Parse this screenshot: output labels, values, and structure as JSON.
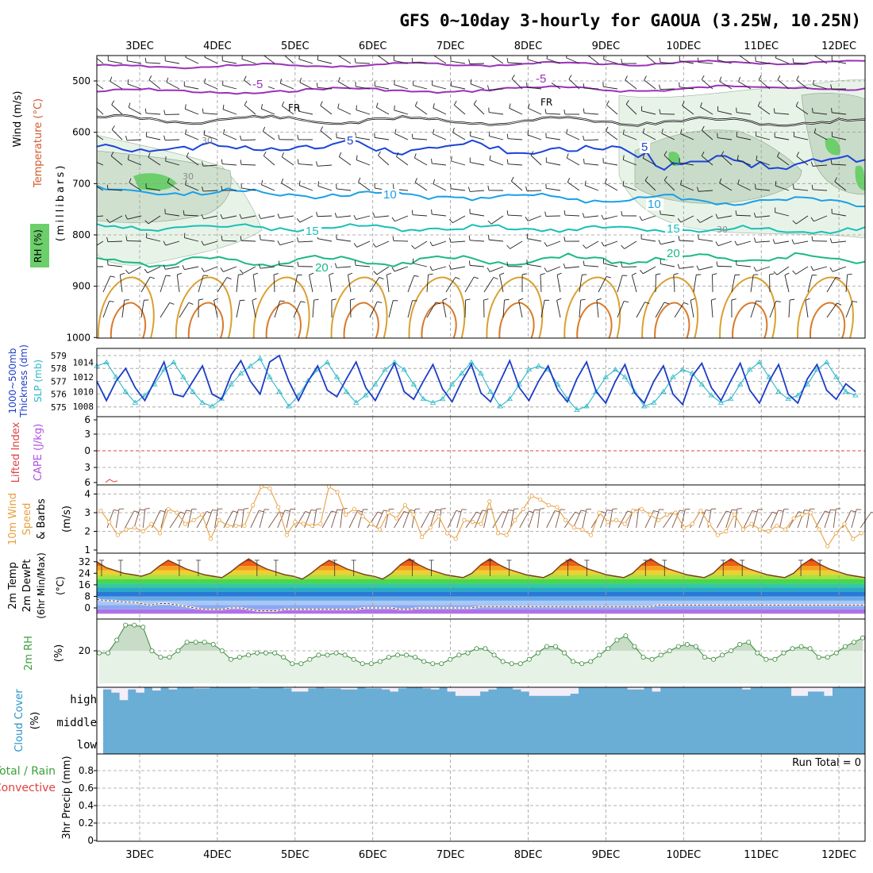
{
  "title": "GFS 0~10day 3-hourly for GAOUA (3.25W, 10.25N)",
  "days": [
    "3DEC",
    "4DEC",
    "5DEC",
    "6DEC",
    "7DEC",
    "8DEC",
    "9DEC",
    "10DEC",
    "11DEC",
    "12DEC"
  ],
  "colors": {
    "grid": "#9a9a9a",
    "rh_fill": "#e6f2e6",
    "rh_mid": "#c5d9c5",
    "rh_dark": "#a9b9a9",
    "rh_hi": "#6dcf6d",
    "purple": "#9a32b8",
    "black": "#000000",
    "blue5": "#1c44d8",
    "blue10": "#1aa0e8",
    "teal15": "#19c0b8",
    "green20": "#1cb888",
    "orange25": "#d9a030",
    "orange30": "#d97a2a",
    "magenta35": "#cc2288",
    "slp": "#2ab8c8",
    "thickness": "#1c3cc8",
    "lifted": "#e04040",
    "cape": "#b050e0",
    "wind10": "#e8a040",
    "cloud": "#6aaed6",
    "cloud_clear": "#f3eef8",
    "rh2m": "#3aa03a"
  },
  "panels": {
    "upper": {
      "ylabel_wind": "Wind (m/s)",
      "ylabel_temp": "Temperature (°C)",
      "ylabel_rh": "RH (%)",
      "ylabel_mb": "(millibars)",
      "ticks": [
        "500",
        "600",
        "700",
        "800",
        "900",
        "1000"
      ],
      "labels": [
        "-5",
        "FR",
        "5",
        "10",
        "15",
        "20",
        "30"
      ]
    },
    "slp": {
      "ylabel_thk": "Thickness (dm)",
      "ylabel_thk2": "1000~500mb",
      "ylabel_slp": "SLP (mb)",
      "ticks_left": [
        "579",
        "578",
        "577",
        "576",
        "575"
      ],
      "ticks_right": [
        "1014",
        "1012",
        "1010",
        "1008"
      ]
    },
    "cape": {
      "ylabel_li": "Lifted Index",
      "ylabel_cape": "CAPE (J/kg)",
      "ticks": [
        "6",
        "3",
        "0",
        "3",
        "6"
      ]
    },
    "wind10": {
      "ylabel1": "10m Wind",
      "ylabel2": "Speed",
      "ylabel3": "& Barbs",
      "ylabel4": "(m/s)",
      "ticks": [
        "4",
        "3",
        "2",
        "1"
      ]
    },
    "temp2m": {
      "ylabel1": "2m Temp",
      "ylabel2": "2m DewPt",
      "ylabel3": "(6hr Min/Max)",
      "ylabel4": "(°C)",
      "ticks": [
        "32",
        "24",
        "16",
        "8",
        "0"
      ]
    },
    "rh2m": {
      "ylabel1": "2m RH",
      "ylabel2": "(%)",
      "ticks": [
        "20"
      ]
    },
    "cloud": {
      "ylabel1": "Cloud Cover",
      "ylabel2": "(%)",
      "levels": [
        "high",
        "middle",
        "low"
      ]
    },
    "precip": {
      "ylabel1": "Total / Rain",
      "ylabel2": "Convective",
      "ylabel3": "3hr Precip (mm)",
      "run_total": "Run Total = 0",
      "ticks": [
        "0.8",
        "0.6",
        "0.4",
        "0.2",
        "0"
      ]
    }
  },
  "chart_data": [
    {
      "type": "line",
      "title": "SLP and 1000~500mb thickness",
      "series": [
        {
          "name": "SLP (mb)",
          "values": [
            1013.5,
            1014,
            1012,
            1010,
            1008.5,
            1009.5,
            1011,
            1013,
            1014,
            1012,
            1010,
            1008.5,
            1008,
            1009,
            1011,
            1012.5,
            1013.5,
            1014.5,
            1012,
            1010,
            1008,
            1009.5,
            1011.5,
            1013,
            1014,
            1012,
            1010,
            1008.5,
            1009.5,
            1011,
            1013,
            1014,
            1013,
            1011,
            1009,
            1008.5,
            1009,
            1011,
            1012.5,
            1014,
            1012.5,
            1010,
            1008,
            1009,
            1011,
            1013,
            1013.5,
            1013,
            1011,
            1009,
            1007.5,
            1008,
            1010,
            1012,
            1013,
            1012,
            1010,
            1008,
            1008.5,
            1010,
            1012,
            1013,
            1012.5,
            1011,
            1009.5,
            1008.5,
            1009,
            1011,
            1013,
            1014,
            1012,
            1010,
            1009,
            1009.5,
            1011,
            1013,
            1014,
            1012,
            1010,
            1009.5
          ]
        },
        {
          "name": "Thickness (dm)",
          "values": [
            577,
            575.5,
            577,
            578,
            576.5,
            575.5,
            577,
            578.5,
            576,
            575.8,
            577,
            578.2,
            576,
            575.6,
            577.5,
            578.6,
            577,
            576,
            578.5,
            579,
            577,
            575.5,
            577,
            578.2,
            576.3,
            575.8,
            577.2,
            578.5,
            576.5,
            575.5,
            577,
            578.4,
            576.2,
            575.6,
            577,
            578.3,
            576.4,
            575.4,
            577,
            578.3,
            576.1,
            575.4,
            577,
            578.6,
            576.5,
            575.5,
            577,
            578.2,
            576.3,
            575.4,
            577.2,
            578.5,
            576.2,
            575.3,
            577,
            578.3,
            576.1,
            575.3,
            577,
            578.2,
            576,
            575.2,
            577.4,
            578.4,
            576.5,
            575.5,
            577,
            578.4,
            576.3,
            575.3,
            577,
            578.3,
            576,
            575.3,
            577.2,
            578.3,
            576.3,
            575.6,
            576.8,
            576.2
          ]
        }
      ]
    },
    {
      "type": "line",
      "title": "10m Wind Speed",
      "ylim": [
        1,
        4.5
      ],
      "series": [
        {
          "name": "10m Wind Speed (m/s)",
          "values": [
            3.1,
            2.5,
            1.8,
            2.1,
            2.2,
            2.0,
            2.4,
            1.9,
            3.2,
            3.0,
            2.4,
            2.6,
            2.9,
            1.6,
            2.6,
            2.3,
            2.3,
            2.3,
            3.4,
            4.4,
            4.3,
            3.3,
            1.8,
            2.5,
            2.4,
            2.3,
            2.4,
            4.4,
            4.1,
            2.9,
            3.2,
            2.8,
            2.4,
            2.1,
            3.0,
            2.7,
            3.4,
            2.9,
            1.7,
            2.2,
            2.8,
            1.9,
            1.6,
            2.6,
            2.5,
            2.4,
            3.6,
            1.9,
            1.8,
            2.6,
            3.2,
            3.9,
            3.7,
            3.4,
            3.3,
            2.6,
            2.2,
            2.1,
            1.8,
            3.0,
            2.5,
            2.6,
            2.4,
            3.1,
            3.2,
            2.9,
            2.6,
            2.9,
            3.0,
            2.2,
            2.4,
            3.1,
            2.4,
            1.8,
            2.0,
            2.9,
            2.1,
            2.4,
            2.1,
            2.0,
            2.3,
            2.1,
            2.7,
            2.9,
            3.0,
            2.1,
            1.2,
            1.9,
            2.4,
            1.6,
            1.9
          ]
        }
      ]
    },
    {
      "type": "area",
      "title": "2m Temp / 2m DewPt",
      "ylim": [
        -2,
        36
      ],
      "series": [
        {
          "name": "2m Temp (°C)",
          "values": [
            32,
            28,
            26,
            24,
            23,
            22,
            24,
            29,
            33,
            30,
            27,
            25,
            23,
            22,
            21,
            25,
            30,
            34,
            30,
            27,
            25,
            23,
            22,
            20,
            24,
            29,
            33,
            30,
            27,
            25,
            23,
            22,
            20,
            24,
            30,
            34,
            30,
            27,
            25,
            23,
            22,
            21,
            24,
            30,
            34,
            30,
            27,
            25,
            23,
            22,
            21,
            24,
            30,
            34,
            30,
            27,
            25,
            23,
            22,
            21,
            24,
            30,
            34,
            30,
            27,
            25,
            23,
            22,
            21,
            24,
            30,
            34,
            30,
            27,
            25,
            23,
            22,
            21,
            24,
            30,
            34,
            30,
            27,
            25,
            23,
            22,
            21
          ]
        },
        {
          "name": "2m DewPt (°C)",
          "values": [
            6,
            5,
            5,
            4,
            4,
            3,
            2,
            3,
            3,
            2,
            1,
            0,
            -1,
            -1,
            -1,
            0,
            0,
            -1,
            -2,
            -2,
            -2,
            -1,
            -1,
            -1,
            -1,
            -1,
            -1,
            -1,
            -1,
            -1,
            0,
            0,
            0,
            0,
            -1,
            -1,
            0,
            0,
            0,
            0,
            0,
            0,
            0,
            1,
            1,
            1,
            1,
            1,
            1,
            1,
            1,
            1,
            1,
            1,
            1,
            1,
            1,
            1,
            1,
            1,
            1,
            1,
            1,
            2,
            2,
            2,
            2,
            2,
            2,
            2,
            2,
            2,
            2,
            2,
            2,
            2,
            2,
            2,
            2,
            2,
            2,
            2,
            2,
            2,
            2,
            2,
            2
          ]
        }
      ]
    },
    {
      "type": "area",
      "title": "2m RH",
      "series": [
        {
          "name": "2m RH (%)",
          "values": [
            19,
            19,
            25,
            32,
            32,
            31,
            20,
            17,
            17,
            20,
            24,
            24,
            24,
            23,
            20,
            16,
            17,
            18,
            19,
            19,
            19,
            17,
            14,
            14,
            16,
            18,
            18,
            19,
            18,
            16,
            14,
            14,
            15,
            17,
            18,
            18,
            17,
            15,
            14,
            14,
            16,
            18,
            19,
            21,
            21,
            18,
            15,
            14,
            14,
            16,
            19,
            22,
            22,
            19,
            15,
            14,
            15,
            18,
            21,
            25,
            27,
            22,
            17,
            16,
            18,
            20,
            22,
            23,
            22,
            17,
            16,
            18,
            20,
            23,
            24,
            19,
            16,
            16,
            19,
            21,
            22,
            21,
            17,
            17,
            19,
            22,
            24,
            26
          ]
        }
      ]
    },
    {
      "type": "bar",
      "title": "Cloud Cover high (%)",
      "series": [
        {
          "name": "high cloud (%)",
          "values": [
            90,
            75,
            40,
            90,
            75,
            100,
            85,
            100,
            90,
            100,
            100,
            95,
            95,
            100,
            100,
            100,
            100,
            100,
            95,
            100,
            100,
            100,
            95,
            80,
            80,
            95,
            100,
            95,
            95,
            90,
            90,
            100,
            95,
            95,
            90,
            80,
            95,
            100,
            100,
            95,
            90,
            100,
            80,
            60,
            60,
            60,
            80,
            90,
            100,
            100,
            90,
            80,
            60,
            60,
            60,
            60,
            60,
            70,
            100,
            100,
            100,
            100,
            100,
            100,
            90,
            90,
            100,
            80,
            100,
            100,
            100,
            100,
            100,
            100,
            100,
            100,
            100,
            100,
            90,
            100,
            100,
            100,
            100,
            100,
            60,
            60,
            80,
            80,
            60,
            100,
            100,
            100,
            100
          ]
        }
      ]
    },
    {
      "type": "bar",
      "title": "3hr Precip",
      "ylim": [
        0,
        0.9
      ],
      "series": [
        {
          "name": "3hr Precip (mm)",
          "values": []
        }
      ]
    }
  ]
}
